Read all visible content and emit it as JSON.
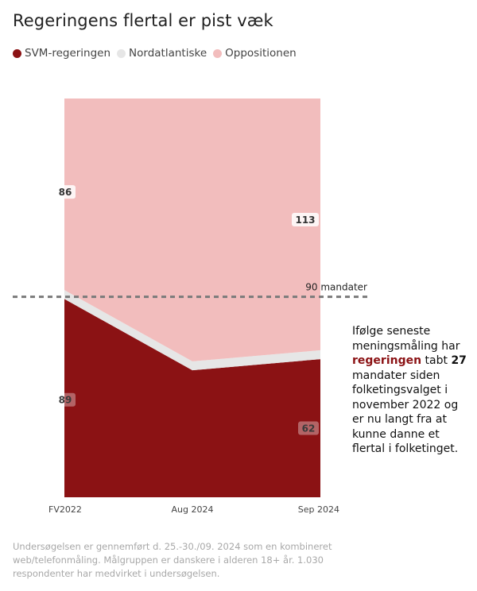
{
  "chart_data": {
    "type": "area",
    "stacked": true,
    "title": "Regeringens flertal er pist væk",
    "categories": [
      "FV2022",
      "Aug 2024",
      "Sep 2024"
    ],
    "series": [
      {
        "name": "SVM-regeringen",
        "color": "#8b1214",
        "values": [
          89,
          57,
          62
        ],
        "labels": [
          "89",
          "",
          "62"
        ]
      },
      {
        "name": "Nordatlantiske",
        "color": "#e6e6e6",
        "values": [
          4,
          4,
          4
        ],
        "labels": [
          "",
          "",
          ""
        ]
      },
      {
        "name": "Oppositionen",
        "color": "#f2bdbd",
        "values": [
          86,
          118,
          113
        ],
        "labels": [
          "86",
          "",
          "113"
        ]
      }
    ],
    "ylim": [
      0,
      179
    ],
    "reference_line": {
      "value": 90,
      "label": "90 mandater"
    },
    "legend_position": "top-left",
    "grid": false
  },
  "annotation": {
    "part1": "Ifølge seneste meningsmåling har ",
    "highlight": "regeringen",
    "part2": " tabt ",
    "number": "27",
    "part3": " mandater siden folketingsvalget i november 2022 og er nu langt fra at kunne danne et flertal i folketinget."
  },
  "footnote": "Undersøgelsen er gennemført d. 25.-30./09. 2024 som en kombineret web/telefonmåling. Målgruppen er danskere i alderen 18+ år. 1.030 respondenter har medvirket i undersøgelsen."
}
